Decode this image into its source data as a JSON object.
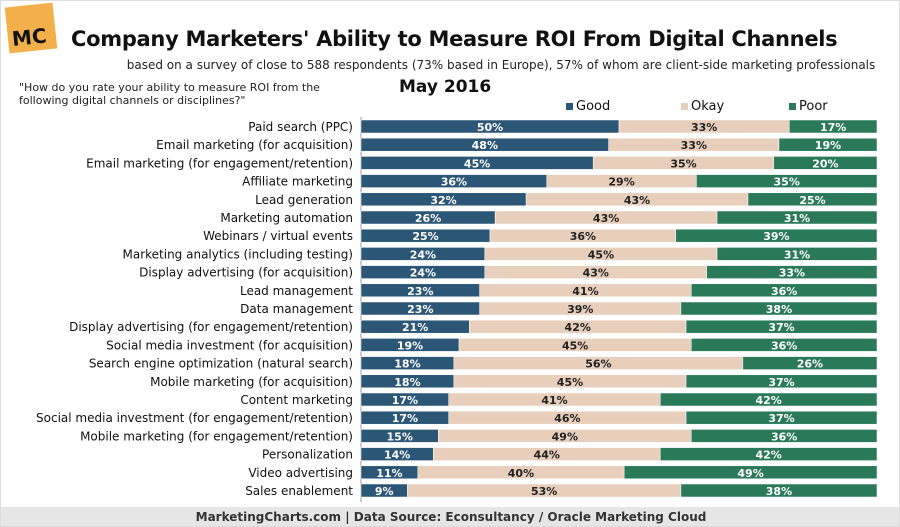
{
  "header": {
    "logo": "MC",
    "title": "Company Marketers' Ability to Measure ROI From Digital Channels",
    "subtitle": "based on a survey of close to 588 respondents (73% based in Europe), 57% of whom are client-side marketing professionals",
    "question": "\"How do you rate your ability to measure ROI from the following digital channels or disciplines?\"",
    "period": "May 2016"
  },
  "footer": "MarketingCharts.com | Data Source: Econsultancy / Oracle Marketing Cloud",
  "colors": {
    "Good": "#2b5676",
    "Okay": "#e8cfbb",
    "Poor": "#2a7a5a"
  },
  "chart_data": {
    "type": "bar",
    "orientation": "horizontal",
    "stacked": true,
    "unit": "%",
    "xlim": [
      0,
      100
    ],
    "legend": "top-right",
    "grid": false,
    "categories": [
      "Paid search (PPC)",
      "Email marketing (for acquisition)",
      "Email marketing (for engagement/retention)",
      "Affiliate marketing",
      "Lead generation",
      "Marketing automation",
      "Webinars / virtual events",
      "Marketing analytics (including testing)",
      "Display advertising (for acquisition)",
      "Lead management",
      "Data management",
      "Display advertising (for engagement/retention)",
      "Social media investment (for acquisition)",
      "Search engine optimization (natural search)",
      "Mobile marketing (for acquisition)",
      "Content marketing",
      "Social media investment (for engagement/retention)",
      "Mobile marketing (for engagement/retention)",
      "Personalization",
      "Video advertising",
      "Sales enablement"
    ],
    "series": [
      {
        "name": "Good",
        "values": [
          50,
          48,
          45,
          36,
          32,
          26,
          25,
          24,
          24,
          23,
          23,
          21,
          19,
          18,
          18,
          17,
          17,
          15,
          14,
          11,
          9
        ]
      },
      {
        "name": "Okay",
        "values": [
          33,
          33,
          35,
          29,
          43,
          43,
          36,
          45,
          43,
          41,
          39,
          42,
          45,
          56,
          45,
          41,
          46,
          49,
          44,
          40,
          53
        ]
      },
      {
        "name": "Poor",
        "values": [
          17,
          19,
          20,
          35,
          25,
          31,
          39,
          31,
          33,
          36,
          38,
          37,
          36,
          26,
          37,
          42,
          37,
          36,
          42,
          49,
          38
        ]
      }
    ]
  }
}
